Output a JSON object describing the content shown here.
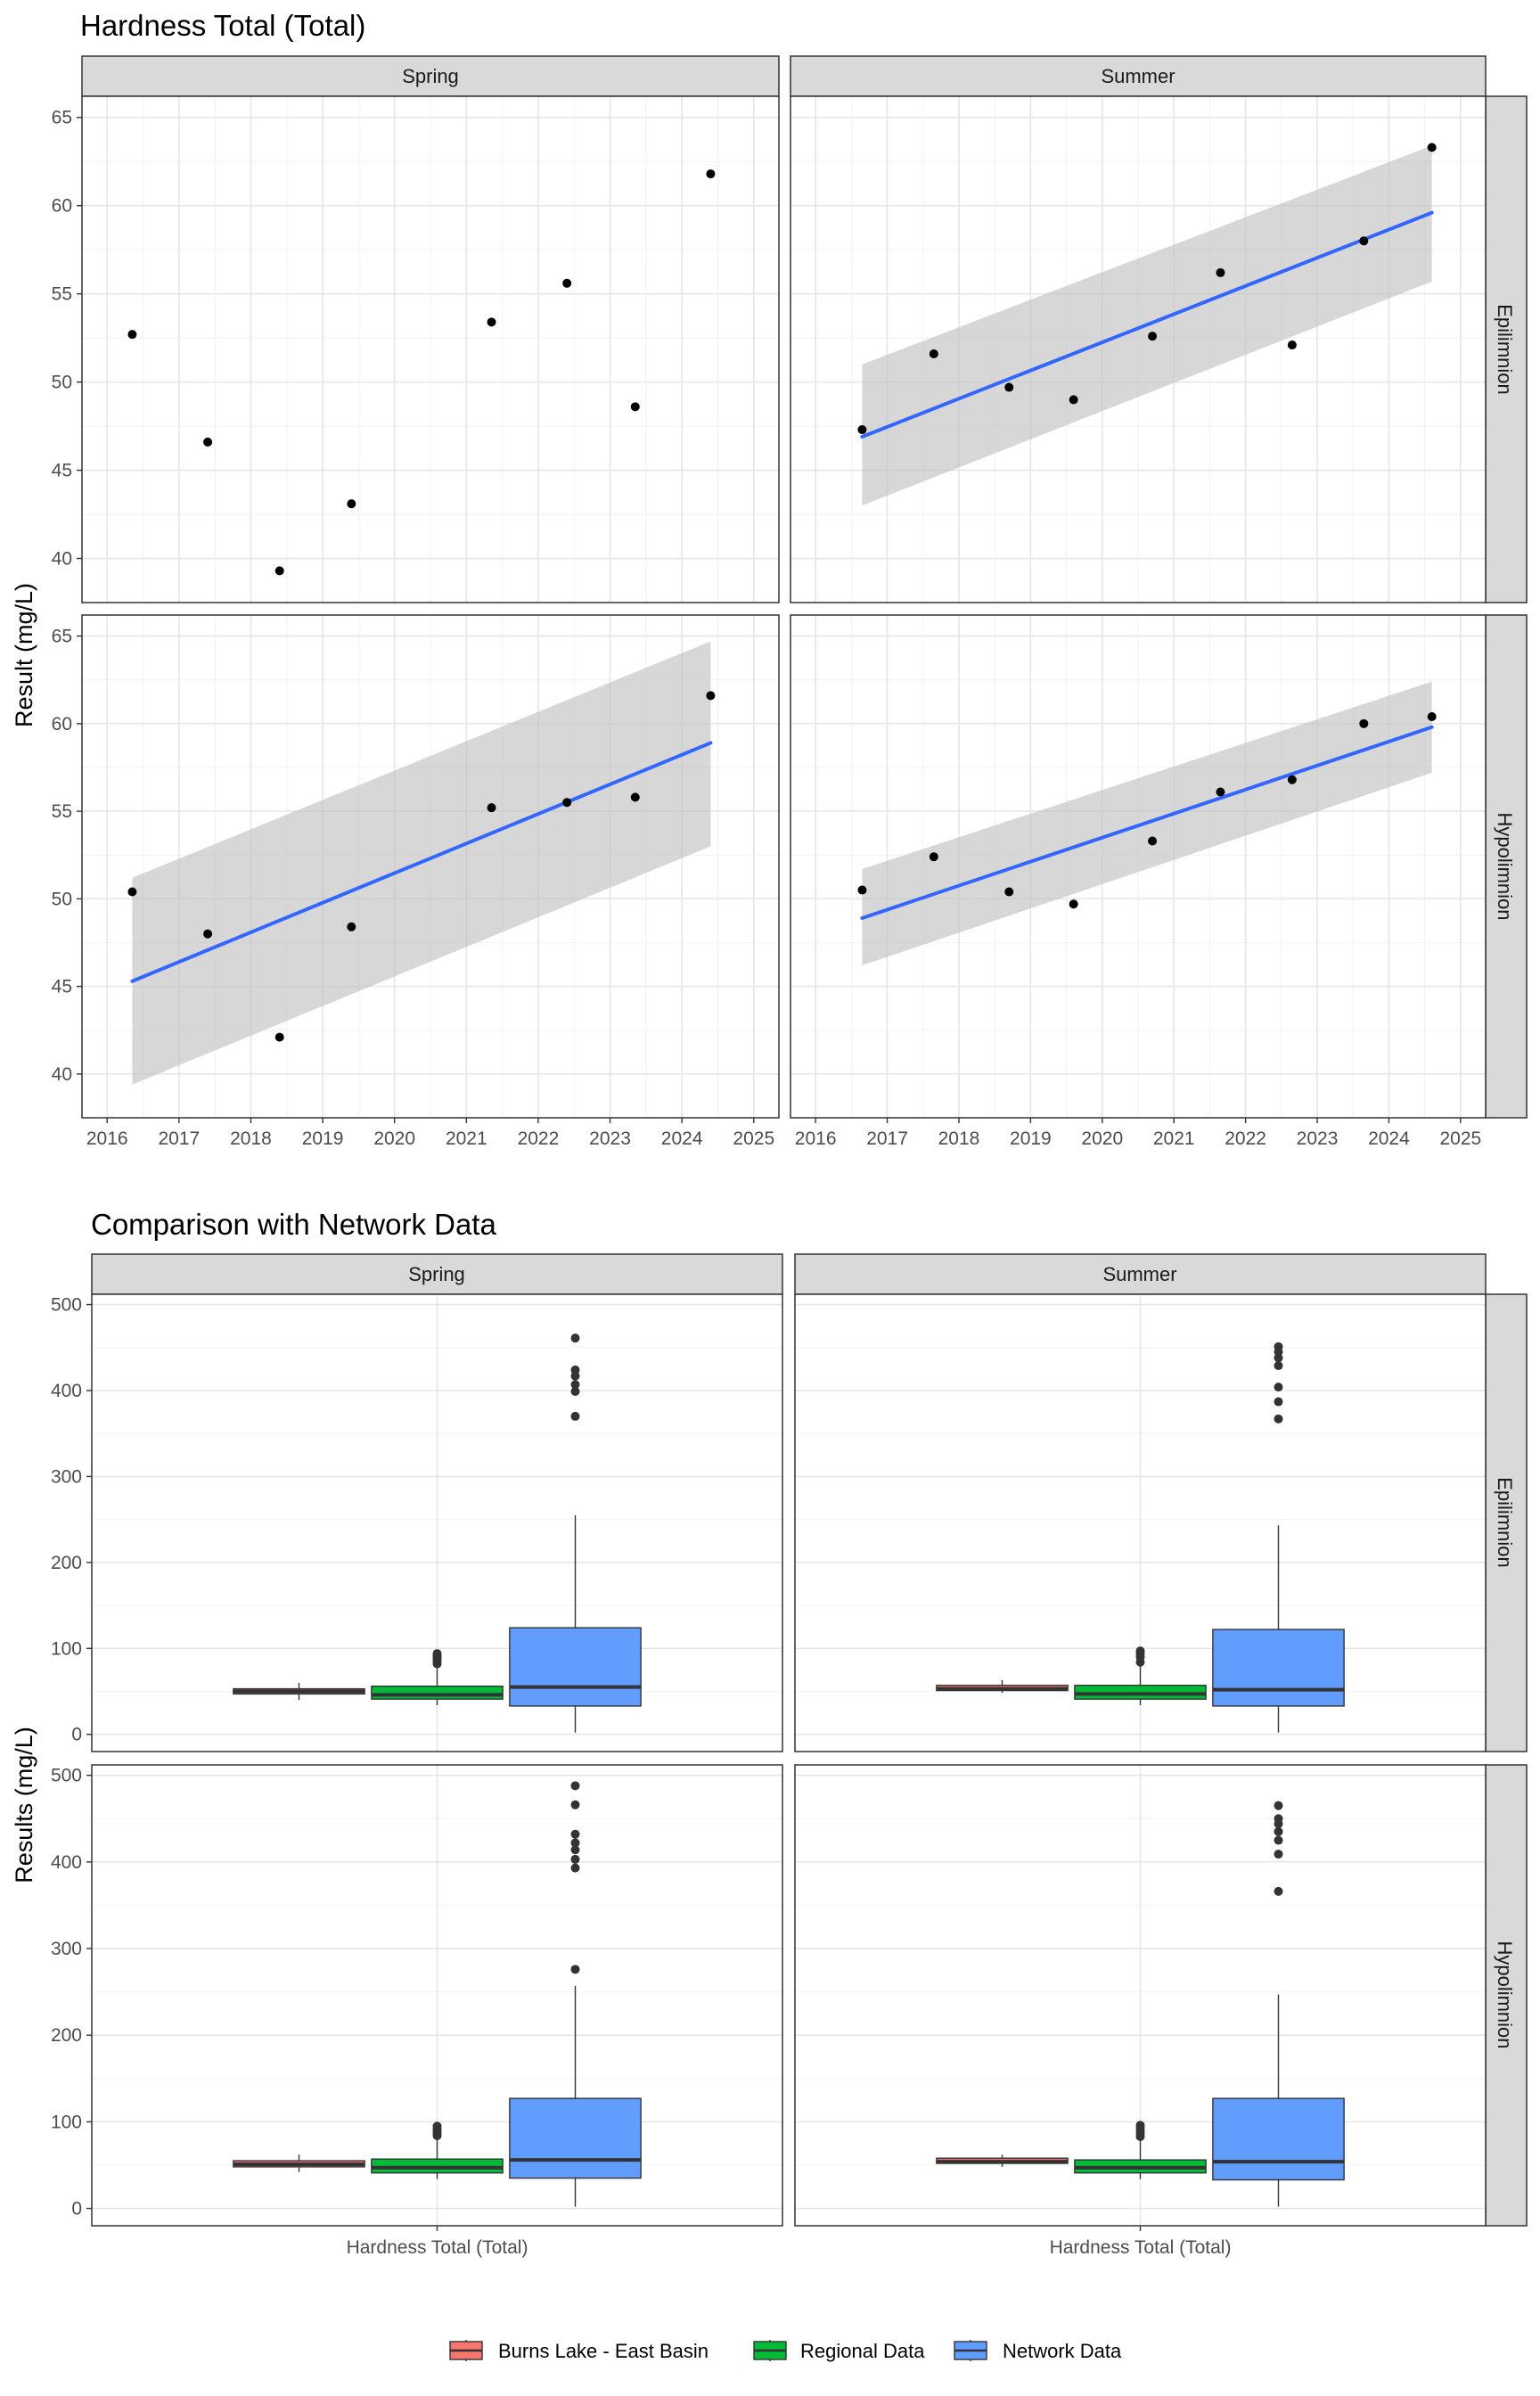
{
  "chart_data": [
    {
      "type": "scatter",
      "title": "Hardness Total (Total)",
      "ylabel": "Result (mg/L)",
      "xlabel": "",
      "x_ticks": [
        "2016",
        "2017",
        "2018",
        "2019",
        "2020",
        "2021",
        "2022",
        "2023",
        "2024",
        "2025"
      ],
      "y_ticks": [
        "40",
        "45",
        "50",
        "55",
        "60",
        "65"
      ],
      "xlim": [
        2015.65,
        2025.35
      ],
      "ylim": [
        37.5,
        66.2
      ],
      "grid": true,
      "columns": [
        "Spring",
        "Summer"
      ],
      "rows": [
        "Epilimnion",
        "Hypolimnion"
      ],
      "trend_color": "#3366ff",
      "ribbon_color": "#bebebe",
      "panels": [
        {
          "column": "Spring",
          "row": "Epilimnion",
          "points": [
            [
              2016.35,
              52.7
            ],
            [
              2017.4,
              46.6
            ],
            [
              2018.4,
              39.3
            ],
            [
              2019.4,
              43.1
            ],
            [
              2021.35,
              53.4
            ],
            [
              2022.4,
              55.6
            ],
            [
              2023.35,
              48.6
            ],
            [
              2024.4,
              61.8
            ]
          ],
          "trend": null
        },
        {
          "column": "Summer",
          "row": "Epilimnion",
          "points": [
            [
              2016.65,
              47.3
            ],
            [
              2017.65,
              51.6
            ],
            [
              2018.7,
              49.7
            ],
            [
              2019.6,
              49.0
            ],
            [
              2020.7,
              52.6
            ],
            [
              2021.65,
              56.2
            ],
            [
              2022.65,
              52.1
            ],
            [
              2023.65,
              58.0
            ],
            [
              2024.6,
              63.3
            ]
          ],
          "trend": {
            "x": [
              2016.65,
              2024.6
            ],
            "fit": [
              46.9,
              59.6
            ],
            "lower": [
              43.0,
              55.7
            ],
            "upper": [
              51.0,
              63.4
            ]
          }
        },
        {
          "column": "Spring",
          "row": "Hypolimnion",
          "points": [
            [
              2016.35,
              50.4
            ],
            [
              2017.4,
              48.0
            ],
            [
              2018.4,
              42.1
            ],
            [
              2019.4,
              48.4
            ],
            [
              2021.35,
              55.2
            ],
            [
              2022.4,
              55.5
            ],
            [
              2023.35,
              55.8
            ],
            [
              2024.4,
              61.6
            ]
          ],
          "trend": {
            "x": [
              2016.35,
              2024.4
            ],
            "fit": [
              45.3,
              58.9
            ],
            "lower": [
              39.4,
              53.0
            ],
            "upper": [
              51.2,
              64.7
            ]
          }
        },
        {
          "column": "Summer",
          "row": "Hypolimnion",
          "points": [
            [
              2016.65,
              50.5
            ],
            [
              2017.65,
              52.4
            ],
            [
              2018.7,
              50.4
            ],
            [
              2019.6,
              49.7
            ],
            [
              2020.7,
              53.3
            ],
            [
              2021.65,
              56.1
            ],
            [
              2022.65,
              56.8
            ],
            [
              2023.65,
              60.0
            ],
            [
              2024.6,
              60.4
            ]
          ],
          "trend": {
            "x": [
              2016.65,
              2024.6
            ],
            "fit": [
              48.9,
              59.8
            ],
            "lower": [
              46.2,
              57.2
            ],
            "upper": [
              51.7,
              62.4
            ]
          }
        }
      ]
    },
    {
      "type": "box",
      "title": "Comparison with Network Data",
      "ylabel": "Results (mg/L)",
      "xlabel": "",
      "category": "Hardness Total (Total)",
      "y_ticks": [
        "0",
        "100",
        "200",
        "300",
        "400",
        "500"
      ],
      "ylim": [
        -20,
        512
      ],
      "grid": true,
      "columns": [
        "Spring",
        "Summer"
      ],
      "rows": [
        "Epilimnion",
        "Hypolimnion"
      ],
      "legend_position": "bottom",
      "groups": [
        {
          "name": "Burns Lake - East Basin",
          "color": "#f8766d"
        },
        {
          "name": "Regional Data",
          "color": "#00ba38"
        },
        {
          "name": "Network Data",
          "color": "#619cff"
        }
      ],
      "panels": [
        {
          "column": "Spring",
          "row": "Epilimnion",
          "boxes": [
            {
              "min": 40,
              "q1": 47,
              "median": 50,
              "q3": 53,
              "max": 60,
              "outliers": []
            },
            {
              "min": 34,
              "q1": 41,
              "median": 46,
              "q3": 56,
              "max": 78,
              "outliers": [
                82,
                85,
                88,
                90,
                92,
                94
              ]
            },
            {
              "min": 2,
              "q1": 33,
              "median": 55,
              "q3": 124,
              "max": 255,
              "outliers": [
                370,
                399,
                407,
                417,
                424,
                461
              ]
            }
          ]
        },
        {
          "column": "Summer",
          "row": "Epilimnion",
          "boxes": [
            {
              "min": 48,
              "q1": 51,
              "median": 53,
              "q3": 57,
              "max": 63,
              "outliers": []
            },
            {
              "min": 34,
              "q1": 41,
              "median": 47,
              "q3": 57,
              "max": 79,
              "outliers": [
                84,
                90,
                94,
                97
              ]
            },
            {
              "min": 2,
              "q1": 33,
              "median": 52,
              "q3": 122,
              "max": 243,
              "outliers": [
                367,
                387,
                404,
                429,
                438,
                445,
                451
              ]
            }
          ]
        },
        {
          "column": "Spring",
          "row": "Hypolimnion",
          "boxes": [
            {
              "min": 42,
              "q1": 48,
              "median": 51,
              "q3": 55,
              "max": 62,
              "outliers": []
            },
            {
              "min": 34,
              "q1": 41,
              "median": 47,
              "q3": 57,
              "max": 80,
              "outliers": [
                84,
                87,
                90,
                92,
                95
              ]
            },
            {
              "min": 2,
              "q1": 35,
              "median": 56,
              "q3": 127,
              "max": 257,
              "outliers": [
                276,
                393,
                403,
                414,
                422,
                432,
                466,
                488
              ]
            }
          ]
        },
        {
          "column": "Summer",
          "row": "Hypolimnion",
          "boxes": [
            {
              "min": 48,
              "q1": 52,
              "median": 54,
              "q3": 58,
              "max": 62,
              "outliers": []
            },
            {
              "min": 34,
              "q1": 41,
              "median": 47,
              "q3": 56,
              "max": 79,
              "outliers": [
                83,
                87,
                90,
                93,
                96
              ]
            },
            {
              "min": 2,
              "q1": 33,
              "median": 54,
              "q3": 127,
              "max": 247,
              "outliers": [
                366,
                409,
                425,
                435,
                444,
                450,
                465
              ]
            }
          ]
        }
      ]
    }
  ],
  "legend": {
    "items": [
      "Burns Lake - East Basin",
      "Regional Data",
      "Network Data"
    ]
  }
}
